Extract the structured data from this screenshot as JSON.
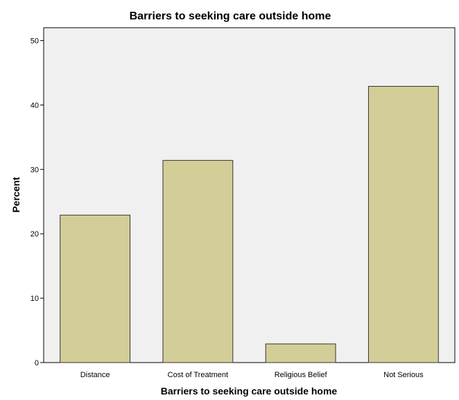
{
  "chart_data": {
    "type": "bar",
    "title": "Barriers to seeking care outside home",
    "xlabel": "Barriers to seeking care outside home",
    "ylabel": "Percent",
    "categories": [
      "Distance",
      "Cost of Treatment",
      "Religious Belief",
      "Not Serious"
    ],
    "values": [
      22.9,
      31.4,
      2.9,
      42.9
    ],
    "ylim": [
      0,
      52
    ],
    "yticks": [
      0,
      10,
      20,
      30,
      40,
      50
    ],
    "ytick_labels": [
      "0",
      "10",
      "20",
      "30",
      "40",
      "50"
    ],
    "grid": false,
    "legend": "none",
    "colors": {
      "bar_fill": "#D3CE97",
      "bar_stroke": "#333333",
      "plot_background": "#F0F0F0",
      "frame": "#000000"
    }
  }
}
